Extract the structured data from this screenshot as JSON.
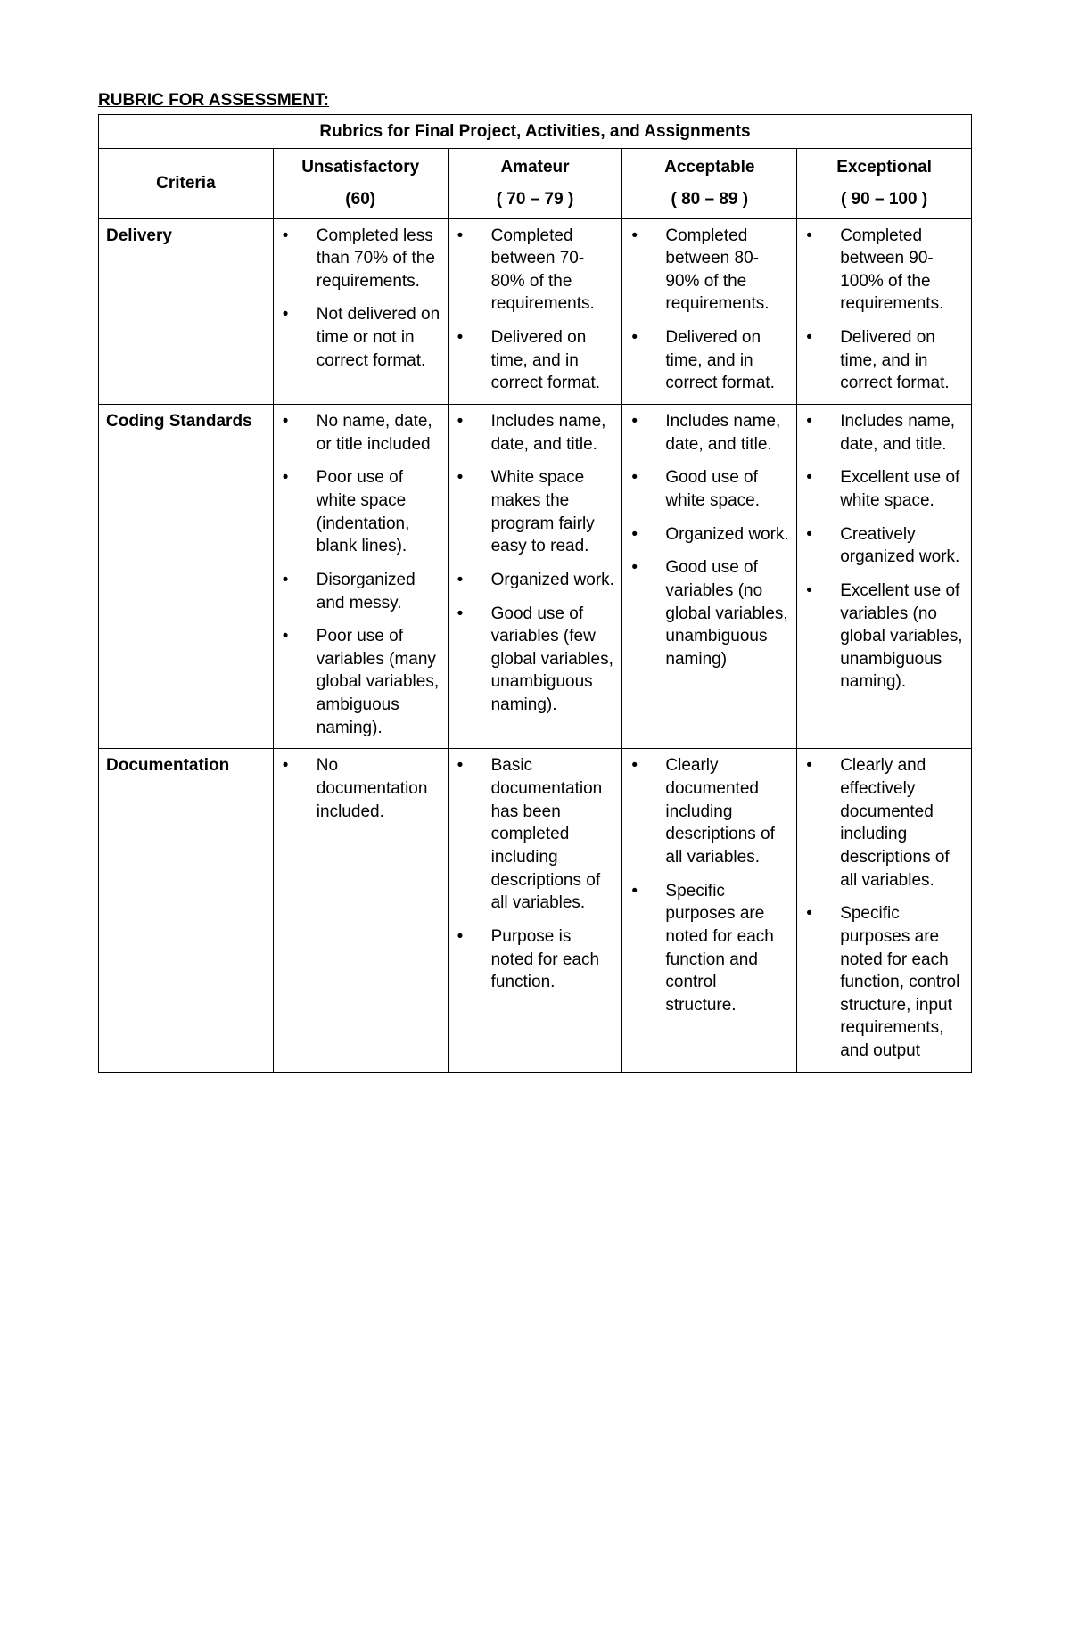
{
  "heading": "RUBRIC FOR ASSESSMENT:",
  "table_title": "Rubrics for Final Project, Activities, and Assignments",
  "header": {
    "criteria": "Criteria",
    "levels": [
      {
        "label": "Unsatisfactory",
        "range": "(60)"
      },
      {
        "label": "Amateur",
        "range": "( 70 – 79 )"
      },
      {
        "label": "Acceptable",
        "range": "( 80 – 89 )"
      },
      {
        "label": "Exceptional",
        "range": "( 90 – 100 )"
      }
    ]
  },
  "rows": [
    {
      "criteria": "Delivery",
      "cells": [
        [
          "Completed less than 70% of the requirements.",
          "Not delivered on time or not in correct format."
        ],
        [
          "Completed between 70-80% of the requirements.",
          "Delivered on time, and in correct format."
        ],
        [
          "Completed between 80-90% of the requirements.",
          "Delivered on time, and in correct format."
        ],
        [
          "Completed between 90-100% of the requirements.",
          "Delivered on time, and in correct format."
        ]
      ]
    },
    {
      "criteria": "Coding Standards",
      "cells": [
        [
          "No name, date, or title included",
          "Poor use of white space (indentation, blank lines).",
          "Disorganized and messy.",
          "Poor use of variables (many global variables, ambiguous naming)."
        ],
        [
          "Includes name, date, and title.",
          "White space makes the program fairly easy to read.",
          "Organized work.",
          "Good  use of variables (few global variables, unambiguous naming)."
        ],
        [
          "Includes name, date, and title.",
          "Good use of white space.",
          "Organized work.",
          "Good  use of variables (no global variables, unambiguous naming)"
        ],
        [
          "Includes name, date, and title.",
          "Excellent use of white space.",
          "Creatively organized work.",
          "Excellent use of variables (no global variables, unambiguous naming)."
        ]
      ]
    },
    {
      "criteria": "Documentation",
      "cells": [
        [
          "No documentation included."
        ],
        [
          "Basic documentation has been completed including descriptions of all variables.",
          "Purpose is noted for each function."
        ],
        [
          "Clearly documented including descriptions of all variables.",
          "Specific purposes are noted for each function and control structure."
        ],
        [
          "Clearly and effectively documented including descriptions of all variables.",
          "Specific purposes are noted for each function, control structure, input requirements, and output"
        ]
      ]
    }
  ],
  "style": {
    "font_family": "Arial",
    "base_fontsize": 19,
    "text_color": "#000000",
    "background_color": "#ffffff",
    "border_color": "#000000"
  }
}
